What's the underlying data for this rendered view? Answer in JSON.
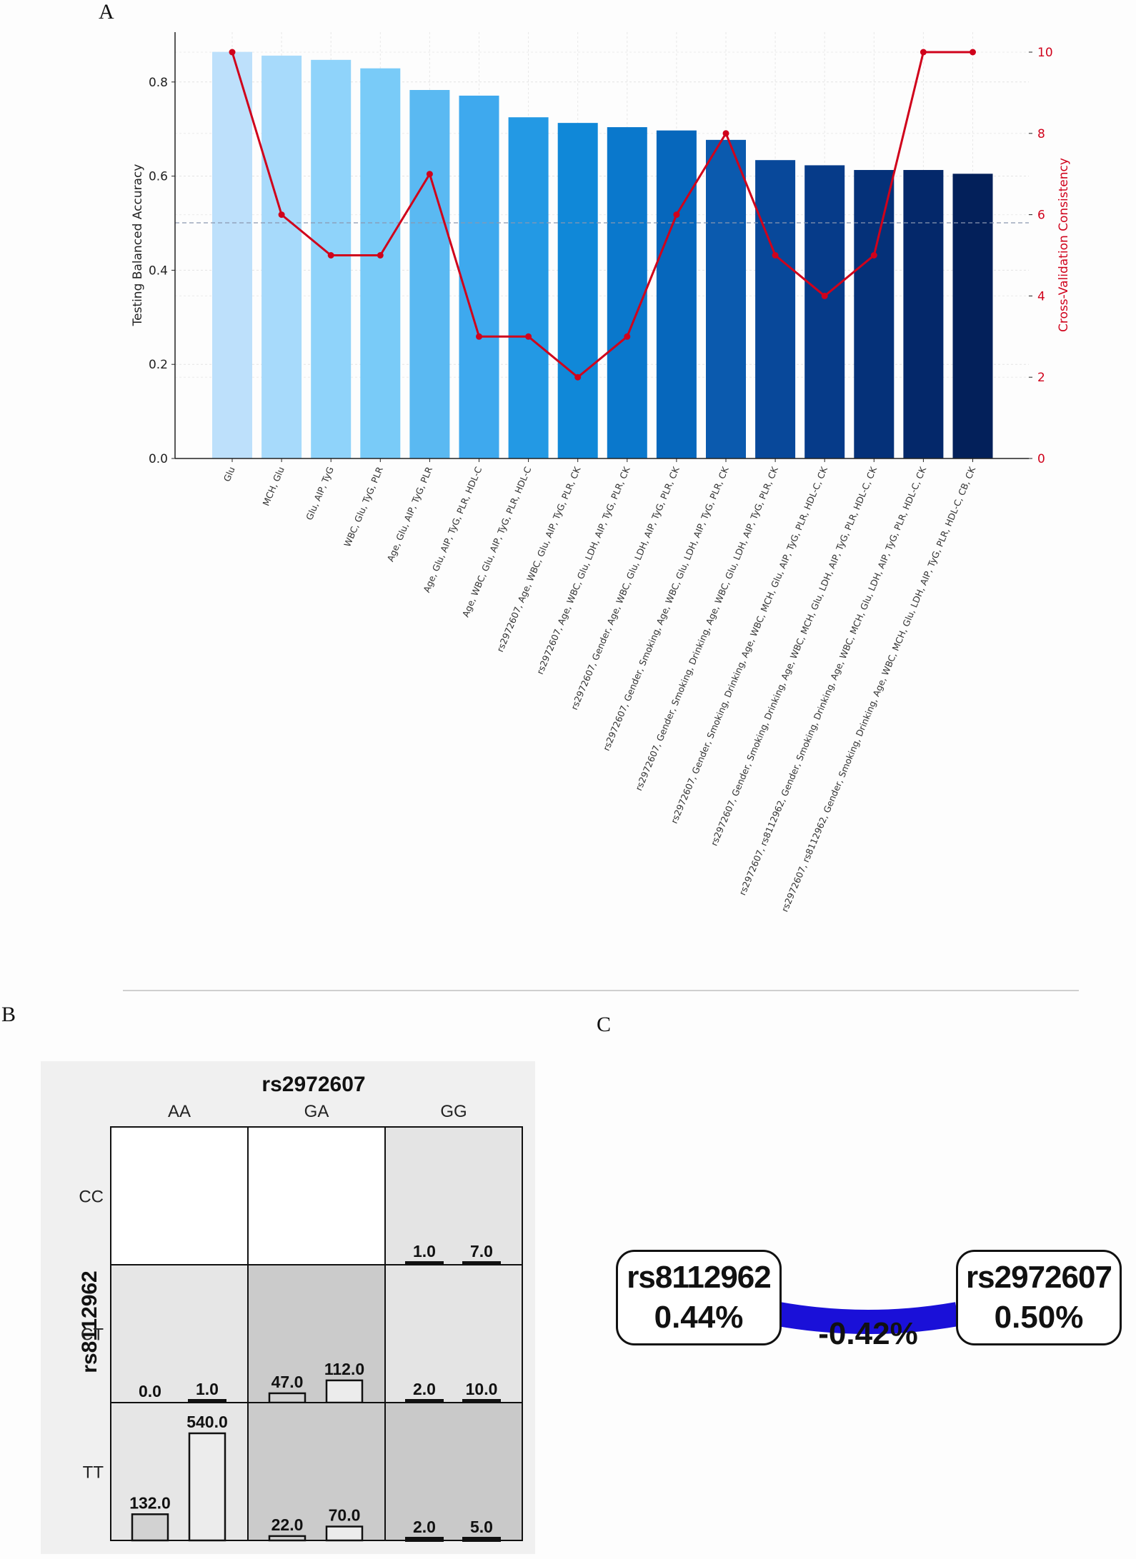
{
  "panels": {
    "A": {
      "letter": "A"
    },
    "B": {
      "letter": "B"
    },
    "C": {
      "letter": "C"
    }
  },
  "chart_data": [
    {
      "type": "bar",
      "panel": "A",
      "title": "",
      "xlabel": "",
      "ylabel": "Testing Balanced Accuracy",
      "y2label": "Cross-Validation Consistency",
      "ylim": [
        0,
        0.9
      ],
      "y2lim": [
        0,
        10.6
      ],
      "yticks": [
        "0.0",
        "0.2",
        "0.4",
        "0.6",
        "0.8"
      ],
      "y2ticks": [
        "0",
        "2",
        "4",
        "6",
        "8",
        "10"
      ],
      "grid": true,
      "reference_line": {
        "axis": "y2",
        "value": 5.8,
        "style": "dashed"
      },
      "categories": [
        "Glu",
        "MCH, Glu",
        "Glu, AIP, TyG",
        "WBC, Glu, TyG, PLR",
        "Age, Glu, AIP, TyG, PLR",
        "Age, Glu, AIP, TyG, PLR, HDL-C",
        "Age, WBC, Glu, AIP, TyG, PLR, HDL-C",
        "rs2972607, Age, WBC, Glu, AIP, TyG, PLR, CK",
        "rs2972607, Age, WBC, Glu, LDH, AIP, TyG, PLR, CK",
        "rs2972607, Gender, Age, WBC, Glu, LDH, AIP, TyG, PLR, CK",
        "rs2972607, Gender, Smoking, Age, WBC, Glu, LDH, AIP, TyG, PLR, CK",
        "rs2972607, Gender, Smoking, Drinking, Age, WBC, Glu, LDH, AIP, TyG, PLR, CK",
        "rs2972607, Gender, Smoking, Drinking, Age, WBC, MCH, Glu, AIP, TyG, PLR, HDL-C, CK",
        "rs2972607, Gender, Smoking, Drinking, Age, WBC, MCH, Glu, LDH, AIP, TyG, PLR, HDL-C, CK",
        "rs2972607, rs8112962, Gender, Smoking, Drinking, Age, WBC, MCH, Glu, LDH, AIP, TyG, PLR, HDL-C, CK",
        "rs2972607, rs8112962, Gender, Smoking, Drinking, Age, WBC, MCH, Glu, LDH, AIP, TyG, PLR, HDL-C, CB, CK"
      ],
      "series": [
        {
          "name": "Testing Balanced Accuracy",
          "kind": "bar",
          "axis": "y",
          "values": [
            0.864,
            0.856,
            0.847,
            0.829,
            0.783,
            0.771,
            0.725,
            0.713,
            0.704,
            0.697,
            0.677,
            0.634,
            0.623,
            0.613,
            0.613,
            0.605
          ]
        },
        {
          "name": "Cross-Validation Consistency",
          "kind": "line",
          "axis": "y2",
          "color": "#d0021b",
          "values": [
            10,
            6,
            5,
            5,
            7,
            3,
            3,
            2,
            3,
            6,
            8,
            5,
            4,
            5,
            10,
            10
          ]
        }
      ],
      "bar_colors": [
        "#bde0fb",
        "#a7dafb",
        "#8fd3fa",
        "#79cbf8",
        "#5ab9f2",
        "#3ea9ee",
        "#2399e4",
        "#1088d8",
        "#0a78cc",
        "#0667bc",
        "#0b5aae",
        "#08489a",
        "#063b89",
        "#053179",
        "#04286a",
        "#03205a"
      ]
    },
    {
      "type": "table",
      "panel": "B",
      "title": "rs2972607",
      "xlabel": "rs2972607",
      "ylabel": "rs8112962",
      "columns": [
        "AA",
        "GA",
        "GG"
      ],
      "rows": [
        "CC",
        "CT",
        "TT"
      ],
      "cells": [
        [
          null,
          null,
          {
            "values": [
              1.0,
              7.0
            ],
            "labels": [
              "1.0",
              "7.0"
            ],
            "shade": "#e4e4e4"
          }
        ],
        [
          {
            "values": [
              0.0,
              1.0
            ],
            "labels": [
              "0.0",
              "1.0"
            ],
            "shade": "#e6e6e6"
          },
          {
            "values": [
              47.0,
              112.0
            ],
            "labels": [
              "47.0",
              "112.0"
            ],
            "shade": "#cbcbcb"
          },
          {
            "values": [
              2.0,
              10.0
            ],
            "labels": [
              "2.0",
              "10.0"
            ],
            "shade": "#e4e4e4"
          }
        ],
        [
          {
            "values": [
              132.0,
              540.0
            ],
            "labels": [
              "132.0",
              "540.0"
            ],
            "shade": "#e6e6e6"
          },
          {
            "values": [
              22.0,
              70.0
            ],
            "labels": [
              "22.0",
              "70.0"
            ],
            "shade": "#cbcbcb"
          },
          {
            "values": [
              2.0,
              5.0
            ],
            "labels": [
              "2.0",
              "5.0"
            ],
            "shade": "#c9c9c9"
          }
        ]
      ],
      "bar_max": 540
    }
  ],
  "panelC": {
    "nodes": [
      {
        "name": "rs8112962",
        "value": "0.44%"
      },
      {
        "name": "rs2972607",
        "value": "0.50%"
      }
    ],
    "edge": {
      "value": "-0.42%",
      "color": "#1a10d8"
    }
  }
}
